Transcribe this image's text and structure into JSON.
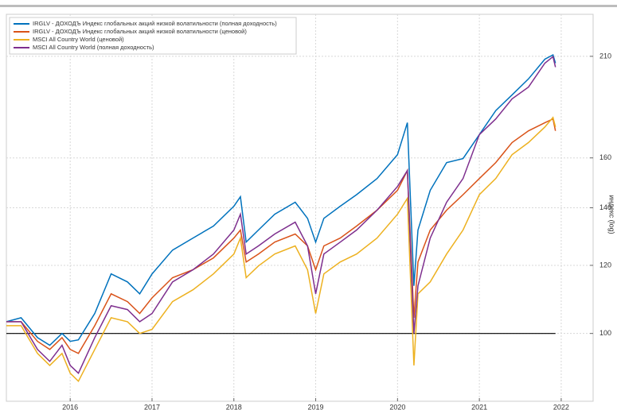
{
  "chart_data": {
    "type": "line",
    "y_label": "индекс (log)",
    "log_scale": true,
    "grid": true,
    "legend": "upper left",
    "hline": 100,
    "xlim": [
      2015.22,
      2022.39
    ],
    "xticks": [
      2016,
      2017,
      2018,
      2019,
      2020,
      2021,
      2022
    ],
    "ylim": [
      83.4,
      235
    ],
    "yticks": [
      100,
      120,
      140,
      160,
      210
    ],
    "x": [
      2015.22,
      2015.4,
      2015.6,
      2015.75,
      2015.9,
      2016.0,
      2016.1,
      2016.3,
      2016.5,
      2016.7,
      2016.85,
      2017.0,
      2017.25,
      2017.5,
      2017.75,
      2018.0,
      2018.08,
      2018.15,
      2018.3,
      2018.5,
      2018.75,
      2018.9,
      2019.0,
      2019.1,
      2019.3,
      2019.5,
      2019.75,
      2020.0,
      2020.12,
      2020.2,
      2020.25,
      2020.4,
      2020.6,
      2020.8,
      2021.0,
      2021.2,
      2021.4,
      2021.6,
      2021.8,
      2021.9,
      2021.93
    ],
    "series": [
      {
        "name": "IRGLV - ДОХОДЪ Индекс глобальных акций низкой волатильности (полная доходность)",
        "color": "#0072bd",
        "values": [
          103.2,
          104.3,
          98.9,
          96.9,
          100,
          97.9,
          98.3,
          105.5,
          117.3,
          114.8,
          111.2,
          117.3,
          125.0,
          129.1,
          133.3,
          140.6,
          144.2,
          127.7,
          131.9,
          137.6,
          142.1,
          136.1,
          127.7,
          136.1,
          140.6,
          145.0,
          151.4,
          161.4,
          175.8,
          113.6,
          131.9,
          146.7,
          158.0,
          159.7,
          170.3,
          181.6,
          189.4,
          197.7,
          208.4,
          210.8,
          206.2
        ]
      },
      {
        "name": "IRGLV - ДОХОДЪ Индекс глобальных акций низкой волатильности (ценовой)",
        "color": "#d95319",
        "values": [
          103.2,
          103.2,
          97.9,
          95.8,
          98.9,
          95.8,
          94.8,
          102.1,
          111.2,
          108.9,
          105.5,
          110.0,
          116.1,
          118.6,
          122.4,
          129.1,
          131.9,
          121.1,
          123.7,
          127.7,
          130.5,
          126.4,
          118.6,
          126.4,
          129.1,
          133.3,
          139.1,
          146.7,
          154.7,
          104.3,
          121.1,
          131.9,
          139.1,
          145.0,
          151.4,
          158.0,
          166.7,
          172.0,
          175.8,
          177.6,
          172.0
        ]
      },
      {
        "name": "MSCI All Country World (ценовой)",
        "color": "#edb120",
        "values": [
          102.1,
          102.1,
          94.8,
          91.8,
          94.8,
          89.9,
          88.0,
          95.8,
          104.3,
          103.2,
          100,
          101.1,
          108.9,
          112.4,
          117.3,
          123.7,
          129.1,
          116.1,
          119.8,
          123.7,
          126.4,
          118.6,
          105.5,
          117.3,
          121.1,
          123.7,
          129.1,
          137.6,
          143.6,
          91.8,
          111.2,
          114.8,
          123.7,
          131.9,
          145.0,
          151.4,
          161.4,
          166.7,
          173.8,
          178.3,
          173.8
        ]
      },
      {
        "name": "MSCI All Country World (полная доходность)",
        "color": "#7e2f8e",
        "values": [
          103.2,
          103.2,
          95.8,
          92.8,
          96.9,
          91.8,
          89.9,
          98.9,
          107.7,
          106.6,
          103.2,
          105.5,
          114.8,
          118.6,
          123.7,
          131.9,
          137.6,
          123.7,
          126.4,
          130.5,
          134.7,
          126.4,
          111.2,
          123.7,
          127.7,
          131.9,
          139.1,
          148.2,
          154.7,
          100,
          113.6,
          129.1,
          142.1,
          151.4,
          170.3,
          177.6,
          187.4,
          193.4,
          206.2,
          209.8,
          204.0
        ]
      }
    ]
  }
}
